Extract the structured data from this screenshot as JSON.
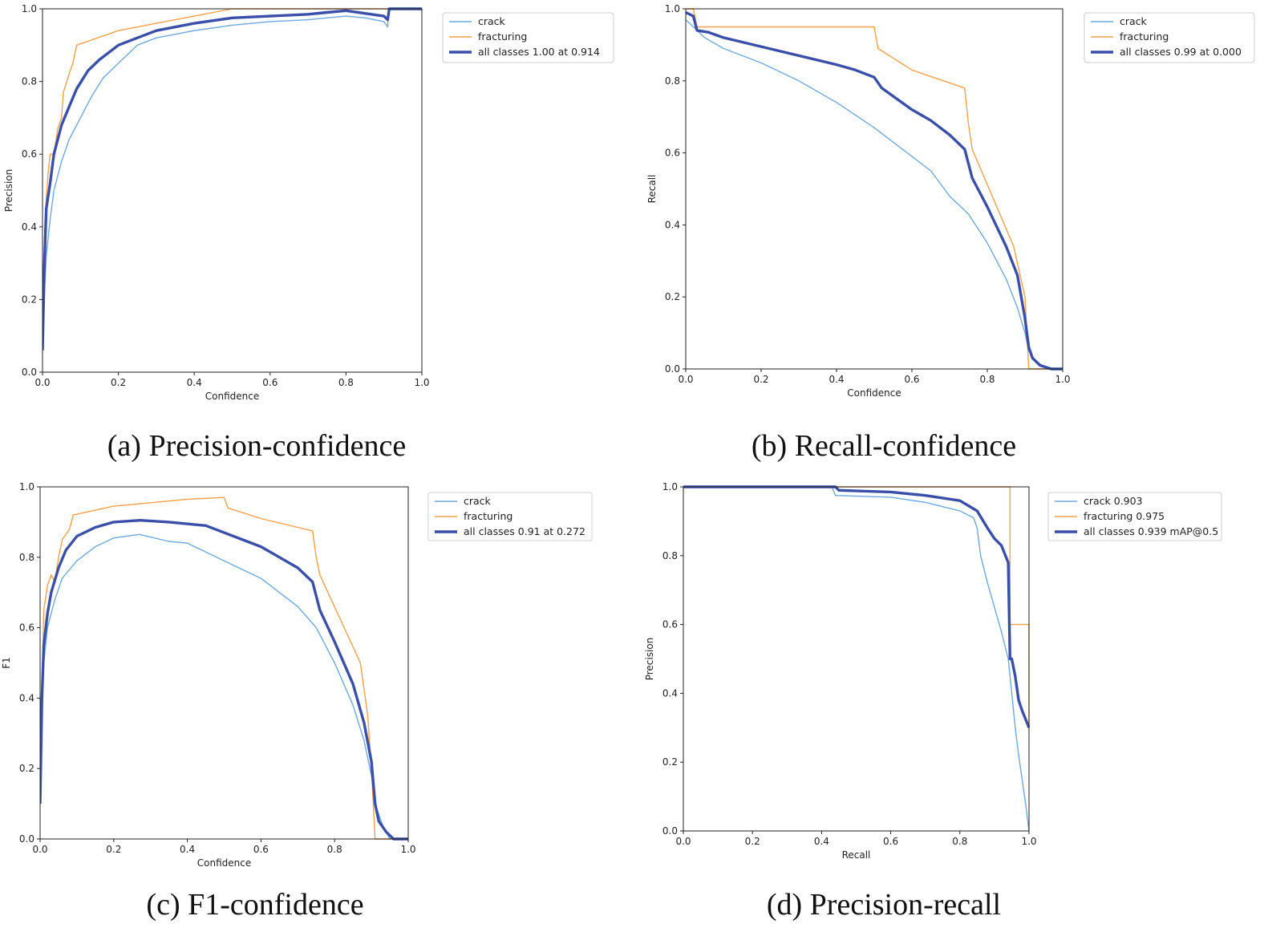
{
  "colors": {
    "crack": "#6fa8dc",
    "fracturing": "#f5a04a",
    "all_classes": "#3a4fa8"
  },
  "chart_data": [
    {
      "id": "a",
      "type": "line",
      "title": "",
      "caption": "(a) Precision-confidence",
      "xlabel": "Confidence",
      "ylabel": "Precision",
      "xlim": [
        0,
        1
      ],
      "ylim": [
        0,
        1
      ],
      "xticks": [
        "0.0",
        "0.2",
        "0.4",
        "0.6",
        "0.8",
        "1.0"
      ],
      "yticks": [
        "0.0",
        "0.2",
        "0.4",
        "0.6",
        "0.8",
        "1.0"
      ],
      "legend_position": "outside-top-right",
      "series": [
        {
          "name": "crack",
          "style": "crack",
          "x": [
            0.0,
            0.005,
            0.01,
            0.02,
            0.03,
            0.05,
            0.07,
            0.1,
            0.13,
            0.16,
            0.2,
            0.25,
            0.3,
            0.4,
            0.5,
            0.6,
            0.7,
            0.75,
            0.8,
            0.85,
            0.9,
            0.91,
            0.912,
            0.914,
            1.0
          ],
          "y": [
            0.08,
            0.22,
            0.32,
            0.42,
            0.5,
            0.58,
            0.64,
            0.7,
            0.76,
            0.81,
            0.85,
            0.9,
            0.92,
            0.94,
            0.955,
            0.965,
            0.97,
            0.975,
            0.98,
            0.975,
            0.965,
            0.95,
            0.99,
            1.0,
            1.0
          ]
        },
        {
          "name": "fracturing",
          "style": "fracturing",
          "x": [
            0.0,
            0.005,
            0.01,
            0.015,
            0.02,
            0.03,
            0.04,
            0.05,
            0.055,
            0.07,
            0.08,
            0.09,
            0.2,
            0.3,
            0.4,
            0.5,
            1.0
          ],
          "y": [
            0.1,
            0.35,
            0.48,
            0.55,
            0.6,
            0.6,
            0.67,
            0.7,
            0.77,
            0.82,
            0.85,
            0.9,
            0.94,
            0.96,
            0.98,
            1.0,
            1.0
          ]
        },
        {
          "name": "all classes 1.00 at 0.914",
          "style": "all_classes",
          "x": [
            0.0,
            0.005,
            0.01,
            0.02,
            0.03,
            0.05,
            0.07,
            0.09,
            0.12,
            0.15,
            0.2,
            0.25,
            0.3,
            0.4,
            0.5,
            0.6,
            0.7,
            0.75,
            0.8,
            0.9,
            0.91,
            0.914,
            1.0
          ],
          "y": [
            0.06,
            0.3,
            0.45,
            0.52,
            0.6,
            0.68,
            0.73,
            0.78,
            0.83,
            0.86,
            0.9,
            0.92,
            0.94,
            0.96,
            0.975,
            0.98,
            0.985,
            0.99,
            0.995,
            0.98,
            0.97,
            1.0,
            1.0
          ]
        }
      ]
    },
    {
      "id": "b",
      "type": "line",
      "title": "",
      "caption": "(b) Recall-confidence",
      "xlabel": "Confidence",
      "ylabel": "Recall",
      "xlim": [
        0,
        1
      ],
      "ylim": [
        0,
        1
      ],
      "xticks": [
        "0.0",
        "0.2",
        "0.4",
        "0.6",
        "0.8",
        "1.0"
      ],
      "yticks": [
        "0.0",
        "0.2",
        "0.4",
        "0.6",
        "0.8",
        "1.0"
      ],
      "legend_position": "outside-top-right",
      "series": [
        {
          "name": "crack",
          "style": "crack",
          "x": [
            0.0,
            0.02,
            0.05,
            0.1,
            0.2,
            0.3,
            0.4,
            0.5,
            0.6,
            0.65,
            0.7,
            0.75,
            0.8,
            0.85,
            0.88,
            0.9,
            0.91,
            0.93,
            0.96,
            1.0
          ],
          "y": [
            0.97,
            0.95,
            0.92,
            0.89,
            0.85,
            0.8,
            0.74,
            0.67,
            0.59,
            0.55,
            0.48,
            0.43,
            0.35,
            0.25,
            0.17,
            0.1,
            0.05,
            0.02,
            0.0,
            0.0
          ]
        },
        {
          "name": "fracturing",
          "style": "fracturing",
          "x": [
            0.0,
            0.02,
            0.03,
            0.5,
            0.51,
            0.6,
            0.74,
            0.75,
            0.76,
            0.87,
            0.9,
            0.905,
            0.91,
            1.0
          ],
          "y": [
            1.0,
            1.0,
            0.95,
            0.95,
            0.89,
            0.83,
            0.78,
            0.68,
            0.61,
            0.34,
            0.2,
            0.1,
            0.0,
            0.0
          ]
        },
        {
          "name": "all classes 0.99 at 0.000",
          "style": "all_classes",
          "x": [
            0.0,
            0.02,
            0.03,
            0.06,
            0.1,
            0.2,
            0.3,
            0.4,
            0.45,
            0.5,
            0.52,
            0.6,
            0.65,
            0.7,
            0.74,
            0.76,
            0.8,
            0.85,
            0.88,
            0.9,
            0.91,
            0.92,
            0.94,
            0.97,
            1.0
          ],
          "y": [
            0.99,
            0.98,
            0.94,
            0.935,
            0.92,
            0.895,
            0.87,
            0.845,
            0.83,
            0.81,
            0.78,
            0.72,
            0.69,
            0.65,
            0.61,
            0.53,
            0.45,
            0.34,
            0.26,
            0.14,
            0.06,
            0.03,
            0.01,
            0.0,
            0.0
          ]
        }
      ]
    },
    {
      "id": "c",
      "type": "line",
      "title": "",
      "caption": "(c) F1-confidence",
      "xlabel": "Confidence",
      "ylabel": "F1",
      "xlim": [
        0,
        1
      ],
      "ylim": [
        0,
        1
      ],
      "xticks": [
        "0.0",
        "0.2",
        "0.4",
        "0.6",
        "0.8",
        "1.0"
      ],
      "yticks": [
        "0.0",
        "0.2",
        "0.4",
        "0.6",
        "0.8",
        "1.0"
      ],
      "legend_position": "outside-top-right",
      "series": [
        {
          "name": "crack",
          "style": "crack",
          "x": [
            0.0,
            0.005,
            0.01,
            0.02,
            0.04,
            0.06,
            0.1,
            0.15,
            0.2,
            0.27,
            0.35,
            0.4,
            0.5,
            0.6,
            0.65,
            0.7,
            0.75,
            0.8,
            0.85,
            0.88,
            0.9,
            0.91,
            0.93,
            0.95,
            1.0
          ],
          "y": [
            0.12,
            0.4,
            0.5,
            0.6,
            0.68,
            0.74,
            0.79,
            0.83,
            0.855,
            0.865,
            0.845,
            0.84,
            0.79,
            0.74,
            0.7,
            0.66,
            0.6,
            0.5,
            0.38,
            0.28,
            0.18,
            0.1,
            0.04,
            0.0,
            0.0
          ]
        },
        {
          "name": "fracturing",
          "style": "fracturing",
          "x": [
            0.0,
            0.01,
            0.02,
            0.03,
            0.04,
            0.05,
            0.06,
            0.08,
            0.09,
            0.2,
            0.3,
            0.4,
            0.5,
            0.51,
            0.6,
            0.74,
            0.75,
            0.76,
            0.87,
            0.89,
            0.9,
            0.905,
            0.91,
            1.0
          ],
          "y": [
            0.2,
            0.65,
            0.72,
            0.75,
            0.73,
            0.8,
            0.85,
            0.88,
            0.92,
            0.945,
            0.955,
            0.965,
            0.97,
            0.94,
            0.91,
            0.875,
            0.8,
            0.75,
            0.5,
            0.35,
            0.2,
            0.1,
            0.0,
            0.0
          ]
        },
        {
          "name": "all classes 0.91 at 0.272",
          "style": "all_classes",
          "x": [
            0.0,
            0.005,
            0.01,
            0.02,
            0.03,
            0.05,
            0.07,
            0.1,
            0.15,
            0.2,
            0.272,
            0.35,
            0.45,
            0.5,
            0.55,
            0.6,
            0.65,
            0.7,
            0.74,
            0.76,
            0.8,
            0.85,
            0.88,
            0.9,
            0.91,
            0.92,
            0.94,
            0.96,
            1.0
          ],
          "y": [
            0.1,
            0.4,
            0.55,
            0.64,
            0.7,
            0.77,
            0.82,
            0.86,
            0.885,
            0.9,
            0.905,
            0.9,
            0.89,
            0.87,
            0.85,
            0.83,
            0.8,
            0.77,
            0.73,
            0.65,
            0.56,
            0.44,
            0.33,
            0.22,
            0.1,
            0.05,
            0.02,
            0.0,
            0.0
          ]
        }
      ]
    },
    {
      "id": "d",
      "type": "line",
      "title": "",
      "caption": "(d) Precision-recall",
      "xlabel": "Recall",
      "ylabel": "Precision",
      "xlim": [
        0,
        1
      ],
      "ylim": [
        0,
        1
      ],
      "xticks": [
        "0.0",
        "0.2",
        "0.4",
        "0.6",
        "0.8",
        "1.0"
      ],
      "yticks": [
        "0.0",
        "0.2",
        "0.4",
        "0.6",
        "0.8",
        "1.0"
      ],
      "legend_position": "outside-top-right",
      "series": [
        {
          "name": "crack 0.903",
          "style": "crack",
          "x": [
            0.0,
            0.43,
            0.44,
            0.6,
            0.7,
            0.8,
            0.84,
            0.85,
            0.86,
            0.88,
            0.9,
            0.92,
            0.94,
            0.95,
            0.96,
            0.97,
            0.98,
            0.99,
            1.0
          ],
          "y": [
            1.0,
            1.0,
            0.975,
            0.97,
            0.955,
            0.93,
            0.91,
            0.88,
            0.8,
            0.72,
            0.65,
            0.58,
            0.5,
            0.4,
            0.3,
            0.22,
            0.15,
            0.08,
            0.0
          ]
        },
        {
          "name": "fracturing 0.975",
          "style": "fracturing",
          "x": [
            0.0,
            0.945,
            0.945,
            1.0,
            1.0
          ],
          "y": [
            1.0,
            1.0,
            0.6,
            0.6,
            0.3
          ]
        },
        {
          "name": "all classes 0.939 mAP@0.5",
          "style": "all_classes",
          "x": [
            0.0,
            0.44,
            0.45,
            0.6,
            0.7,
            0.8,
            0.85,
            0.88,
            0.9,
            0.92,
            0.94,
            0.945,
            0.95,
            0.96,
            0.97,
            0.98,
            1.0
          ],
          "y": [
            1.0,
            1.0,
            0.99,
            0.985,
            0.975,
            0.96,
            0.93,
            0.88,
            0.85,
            0.83,
            0.78,
            0.5,
            0.5,
            0.45,
            0.38,
            0.35,
            0.3
          ]
        }
      ]
    }
  ]
}
